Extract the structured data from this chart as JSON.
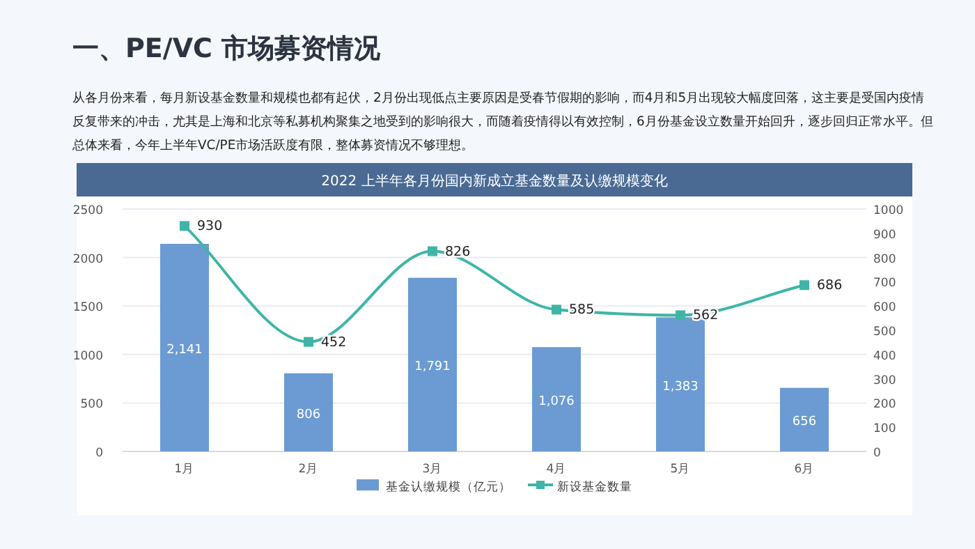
{
  "chart_data": {
    "type": "bar",
    "title": "2022 上半年各月份国内新成立基金数量及认缴规模变化",
    "annotations": [
      "一、PE/VC 市场募资情况",
      "从各月份来看，每月新设基金数量和规模也都有起伏，2月份出现低点主要原因是受春节假期的影响，而4月和5月出现较大幅度回落，这主要是受国内疫情反复带来的冲击，尤其是上海和北京等私募机构聚集之地受到的影响很大，而随着疫情得以有效控制，6月份基金设立数量开始回升，逐步回归正常水平。但总体来看，今年上半年VC/PE市场活跃度有限，整体募资情况不够理想。"
    ],
    "categories": [
      "1月",
      "2月",
      "3月",
      "4月",
      "5月",
      "6月"
    ],
    "series": [
      {
        "name": "基金认缴规模（亿元）",
        "color": "#6b9bd2",
        "values": [
          2141,
          806,
          1791,
          1076,
          1383,
          656
        ],
        "value_labels": [
          "2,141",
          "806",
          "1,791",
          "1,076",
          "1,383",
          "656"
        ]
      },
      {
        "name": "新设基金数量",
        "type": "line",
        "axis": "y2",
        "color": "#3fb5a8",
        "marker": "square",
        "values": [
          930,
          452,
          826,
          585,
          562,
          686
        ],
        "value_labels": [
          "930",
          "452",
          "826",
          "585",
          "562",
          "686"
        ]
      }
    ],
    "ylim": [
      0,
      2500
    ],
    "yticks": [
      0,
      500,
      1000,
      1500,
      2000,
      2500
    ],
    "y2lim": [
      0,
      1000
    ],
    "y2ticks": [
      0,
      100,
      200,
      300,
      400,
      500,
      600,
      700,
      800,
      900,
      1000
    ],
    "grid": "y",
    "legend": "bottom"
  }
}
